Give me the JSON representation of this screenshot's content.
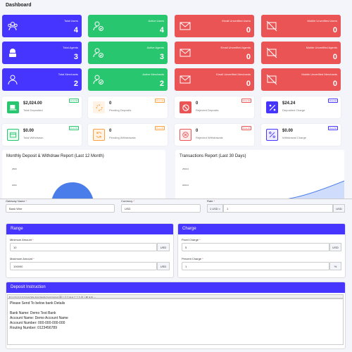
{
  "header": {
    "title": "Dashboard"
  },
  "stats": [
    {
      "label": "Total Users",
      "value": "4",
      "icon": "users-icon"
    },
    {
      "label": "Active Users",
      "value": "4",
      "icon": "user-check-icon"
    },
    {
      "label": "Email Unverified Users",
      "value": "0",
      "icon": "envelope-icon"
    },
    {
      "label": "Mobile Unverified Users",
      "value": "0",
      "icon": "mobile-off-icon"
    },
    {
      "label": "Total Agents",
      "value": "3",
      "icon": "agent-icon"
    },
    {
      "label": "Active Agents",
      "value": "3",
      "icon": "user-check-icon"
    },
    {
      "label": "Email Unverified Agents",
      "value": "0",
      "icon": "envelope-icon"
    },
    {
      "label": "Mobile Unverified Agents",
      "value": "0",
      "icon": "mobile-off-icon"
    },
    {
      "label": "Total Merchants",
      "value": "2",
      "icon": "merchant-icon"
    },
    {
      "label": "Active Merchants",
      "value": "2",
      "icon": "user-check-icon"
    },
    {
      "label": "Email Unverified Merchants",
      "value": "0",
      "icon": "envelope-icon"
    },
    {
      "label": "Mobile Unverified Merchants",
      "value": "0",
      "icon": "mobile-off-icon"
    }
  ],
  "cards": [
    {
      "value": "$2,024.00",
      "label": "Total Deposited",
      "view": "View All",
      "color": "#28c76f"
    },
    {
      "value": "0",
      "label": "Pending Deposits",
      "view": "View All",
      "color": "#ff9f43"
    },
    {
      "value": "0",
      "label": "Rejected Deposits",
      "view": "View All",
      "color": "#ea5455"
    },
    {
      "value": "$24.24",
      "label": "Deposited Charge",
      "view": "View All",
      "color": "#4634ff"
    },
    {
      "value": "$0.00",
      "label": "Total Withdrawn",
      "view": "View All",
      "color": "#28c76f"
    },
    {
      "value": "0",
      "label": "Pending Withdrawals",
      "view": "View All",
      "color": "#ff9f43"
    },
    {
      "value": "0",
      "label": "Rejected Withdrawals",
      "view": "View All",
      "color": "#ea5455"
    },
    {
      "value": "$0.00",
      "label": "Withdrawal Charge",
      "view": "View All",
      "color": "#4634ff"
    }
  ],
  "charts": {
    "left_title": "Monthly Deposit & Withdraw Report (Last 12 Month)",
    "left_ticks": [
      "2500",
      "2000"
    ],
    "right_title": "Transactions Report (Last 30 Days)",
    "right_ticks": [
      "2500.0",
      "2000.0"
    ]
  },
  "form": {
    "gateway_label": "Gateway Name",
    "gateway_value": "Bank Wire",
    "currency_label": "Currency",
    "currency_value": "USD",
    "rate_label": "Rate",
    "rate_prefix": "1 USD =",
    "rate_value": "1",
    "rate_suffix": "USD",
    "range_title": "Range",
    "min_label": "Minimum Amount",
    "min_value": "10",
    "max_label": "Maximum Amount",
    "max_value": "100000",
    "amount_suffix": "USD",
    "charge_title": "Charge",
    "fixed_label": "Fixed Charge",
    "fixed_value": "5",
    "fixed_suffix": "USD",
    "percent_label": "Percent Charge",
    "percent_value": "1",
    "percent_suffix": "%",
    "instruction_title": "Deposit Instruction",
    "toolbar_text": "B I U S ≡ ≡ ≡ ≡ ≡  Font Size   Font Family   Font Format  ⌫ ✂ ⎘ ⎗ ⊞ ⊟ ↶ ↷ ✎ ⌘ ☐ ◧ ⊕ ⊗ ⋯",
    "editor_lines": [
      "Please Send To below bank Details",
      "",
      "Bank Name: Demo Test Bank",
      "Account Name: Demo Account Name",
      "Account Number: 000-000-000-000",
      "Routing Number: 0123456789"
    ]
  }
}
